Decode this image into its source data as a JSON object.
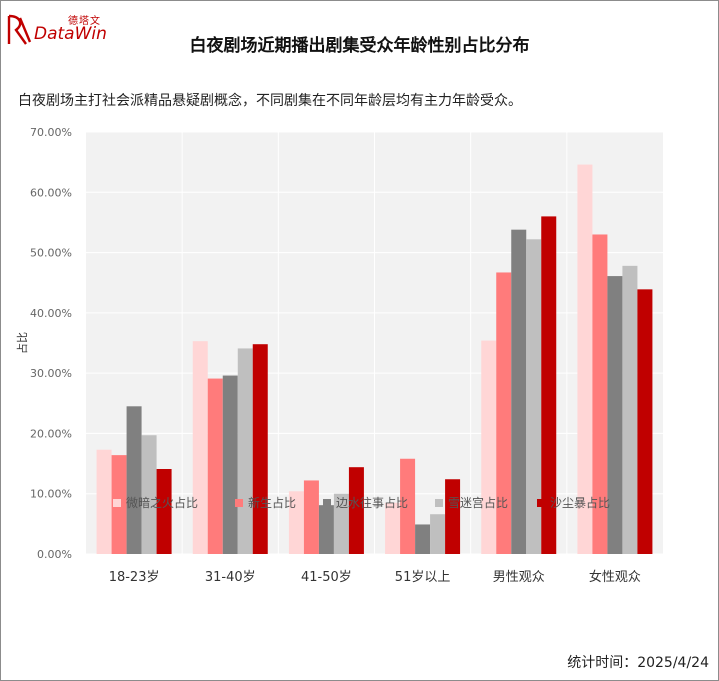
{
  "brand": {
    "cn": "德塔文",
    "en": "DataWin"
  },
  "title": "白夜剧场近期播出剧集受众年龄性别占比分布",
  "subtitle": "白夜剧场主打社会派精品悬疑剧概念，不同剧集在不同年龄层均有主力年龄受众。",
  "footer": "统计时间：2025/4/24",
  "colors": {
    "brand": "#c00000",
    "plot_bg": "#f2f2f2",
    "grid": "#ffffff"
  },
  "chart_data": {
    "type": "bar",
    "title": "白夜剧场近期播出剧集受众年龄性别占比分布",
    "xlabel": "",
    "ylabel": "占比",
    "ylim": [
      0,
      70
    ],
    "y_ticks": [
      "0.00%",
      "10.00%",
      "20.00%",
      "30.00%",
      "40.00%",
      "50.00%",
      "60.00%",
      "70.00%"
    ],
    "grid": true,
    "legend_position": "bottom",
    "categories": [
      "18-23岁",
      "31-40岁",
      "41-50岁",
      "51岁以上",
      "男性观众",
      "女性观众"
    ],
    "series": [
      {
        "name": "微暗之火占比",
        "color": "#ffd6d6",
        "values": [
          17.3,
          35.3,
          10.4,
          8.5,
          35.4,
          64.6
        ]
      },
      {
        "name": "新生占比",
        "color": "#ff7b7b",
        "values": [
          16.4,
          29.1,
          12.2,
          15.8,
          46.7,
          53.0
        ]
      },
      {
        "name": "边水往事占比",
        "color": "#808080",
        "values": [
          24.5,
          29.6,
          8.1,
          4.9,
          53.8,
          46.1
        ]
      },
      {
        "name": "雪迷宫占比",
        "color": "#bfbfbf",
        "values": [
          19.7,
          34.1,
          10.0,
          6.6,
          52.2,
          47.8
        ]
      },
      {
        "name": "沙尘暴占比",
        "color": "#c00000",
        "values": [
          14.1,
          34.8,
          14.4,
          12.4,
          56.0,
          43.9
        ]
      }
    ]
  }
}
